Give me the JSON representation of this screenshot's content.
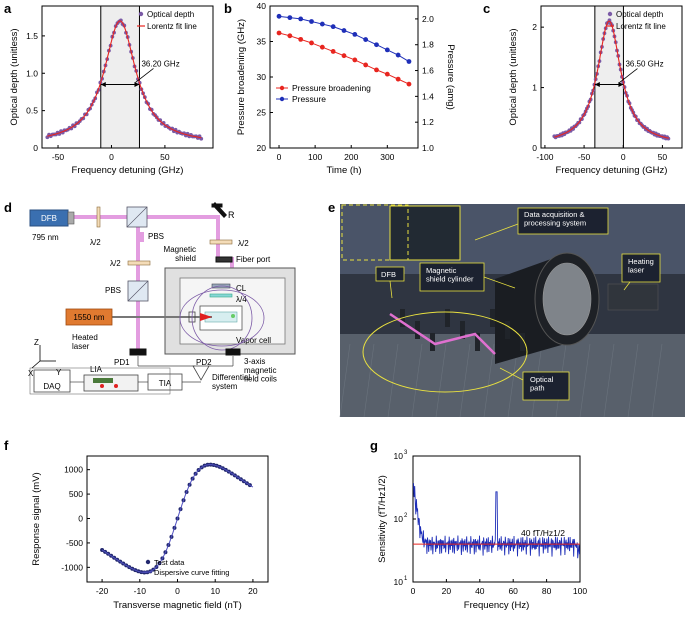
{
  "colors": {
    "axis": "#000000",
    "red": "#e8251f",
    "blue": "#1f2fb8",
    "navy": "#22286e",
    "purple": "#7b5aa6",
    "pink": "#e39de0",
    "shade": "#eeeeee",
    "yellow": "#f2e640"
  },
  "panels": {
    "a": "a",
    "b": "b",
    "c": "c",
    "d": "d",
    "e": "e",
    "f": "f",
    "g": "g"
  },
  "chart_data": [
    {
      "id": "a",
      "type": "scatter",
      "xlabel": "Frequency detuning (GHz)",
      "ylabel": "Optical depth (unitless)",
      "xlim": [
        -65,
        95
      ],
      "ylim": [
        0,
        1.9
      ],
      "xticks": [
        -50,
        0,
        50
      ],
      "yticks": [
        0,
        0.5,
        1.0,
        1.5
      ],
      "legend": [
        "Optical depth",
        "Lorentz fit line"
      ],
      "annotation": "36.20 GHz",
      "lorentz": {
        "center": 8,
        "fwhm": 36.2,
        "peak": 1.7,
        "offset": 0.05
      },
      "shaded": [
        -10,
        26.2
      ],
      "half_max": 0.85,
      "x_range": [
        -60,
        84
      ]
    },
    {
      "id": "b",
      "type": "line",
      "xlabel": "Time (h)",
      "ylabel": "Pressure broadening (GHz)",
      "ylabel2": "Pressure (amg)",
      "xlim": [
        -25,
        385
      ],
      "ylim": [
        20,
        40
      ],
      "ylim2": [
        1.0,
        2.1
      ],
      "xticks": [
        0,
        100,
        200,
        300
      ],
      "yticks": [
        20,
        25,
        30,
        35,
        40
      ],
      "yticks2": [
        1.0,
        1.2,
        1.4,
        1.6,
        1.8,
        2.0
      ],
      "x": [
        0,
        30,
        60,
        90,
        120,
        150,
        180,
        210,
        240,
        270,
        300,
        330,
        360
      ],
      "series": [
        {
          "name": "Pressure broadening",
          "axis": "left",
          "values": [
            36.2,
            35.8,
            35.3,
            34.8,
            34.2,
            33.6,
            33.0,
            32.4,
            31.7,
            31.0,
            30.4,
            29.7,
            29.0
          ]
        },
        {
          "name": "Pressure",
          "axis": "right",
          "values": [
            2.02,
            2.01,
            2.0,
            1.98,
            1.96,
            1.94,
            1.91,
            1.88,
            1.84,
            1.8,
            1.76,
            1.72,
            1.67
          ]
        }
      ]
    },
    {
      "id": "c",
      "type": "scatter",
      "xlabel": "Frequency detuning (GHz)",
      "ylabel": "Optical depth (unitless)",
      "xlim": [
        -105,
        75
      ],
      "ylim": [
        0,
        2.35
      ],
      "xticks": [
        -100,
        -50,
        0,
        50
      ],
      "yticks": [
        0,
        1,
        2
      ],
      "legend": [
        "Optical depth",
        "Lorentz fit line"
      ],
      "annotation": "36.50 GHz",
      "lorentz": {
        "center": -18,
        "fwhm": 36.5,
        "peak": 2.1,
        "offset": 0.05
      },
      "shaded": [
        -36.25,
        0.25
      ],
      "half_max": 1.05,
      "x_range": [
        -88,
        58
      ]
    },
    {
      "id": "f",
      "type": "scatter",
      "xlabel": "Transverse magnetic field (nT)",
      "ylabel": "Response signal (mV)",
      "xlim": [
        -24,
        24
      ],
      "ylim": [
        -1300,
        1280
      ],
      "xticks": [
        -20,
        -10,
        0,
        10,
        20
      ],
      "yticks": [
        -1000,
        -500,
        0,
        500,
        1000
      ],
      "legend": [
        "Test data",
        "Dispersive curve fitting"
      ],
      "x_range": [
        -20,
        20
      ]
    },
    {
      "id": "g",
      "type": "line",
      "xlabel": "Frequency (Hz)",
      "ylabel": "Sensitivity (fT/Hz1/2)",
      "xlim": [
        0,
        100
      ],
      "ylim_log": [
        1,
        3
      ],
      "xticks": [
        0,
        20,
        40,
        60,
        80,
        100
      ],
      "yticks_exp": [
        "1",
        "2",
        "3"
      ],
      "annotation": "40 fT/Hz1/2",
      "noise_floor": 40,
      "peak_hz": 50
    }
  ],
  "diagram_d": {
    "dfb": "DFB",
    "wavelength": "795 nm",
    "hwp1": "λ/2",
    "pbs_top": "PBS",
    "mirror": "R",
    "hwp_right": "λ/2",
    "fiber_port": "Fiber port",
    "magnetic_shield": "Magnetic\nshield",
    "hwp_left": "λ/2",
    "pbs_bottom": "PBS",
    "cl": "CL",
    "qwp": "λ/4",
    "laser1550": "1550 nm",
    "heated_laser": "Heated\nlaser",
    "vapor_cell": "Vapor cell",
    "coils": "3-axis\nmagnetic\nfield coils",
    "pd1": "PD1",
    "pd2": "PD2",
    "lia": "LIA",
    "daq": "DAQ",
    "tia": "TIA",
    "diff": "Differential\nsystem",
    "axis_z": "Z",
    "axis_x": "X",
    "axis_y": "Y"
  },
  "photo_e": {
    "labels": [
      "Data acquisition &\nprocessing system",
      "DFB",
      "Magnetic\nshield cylinder",
      "Heating\nlaser",
      "Optical\npath"
    ]
  }
}
